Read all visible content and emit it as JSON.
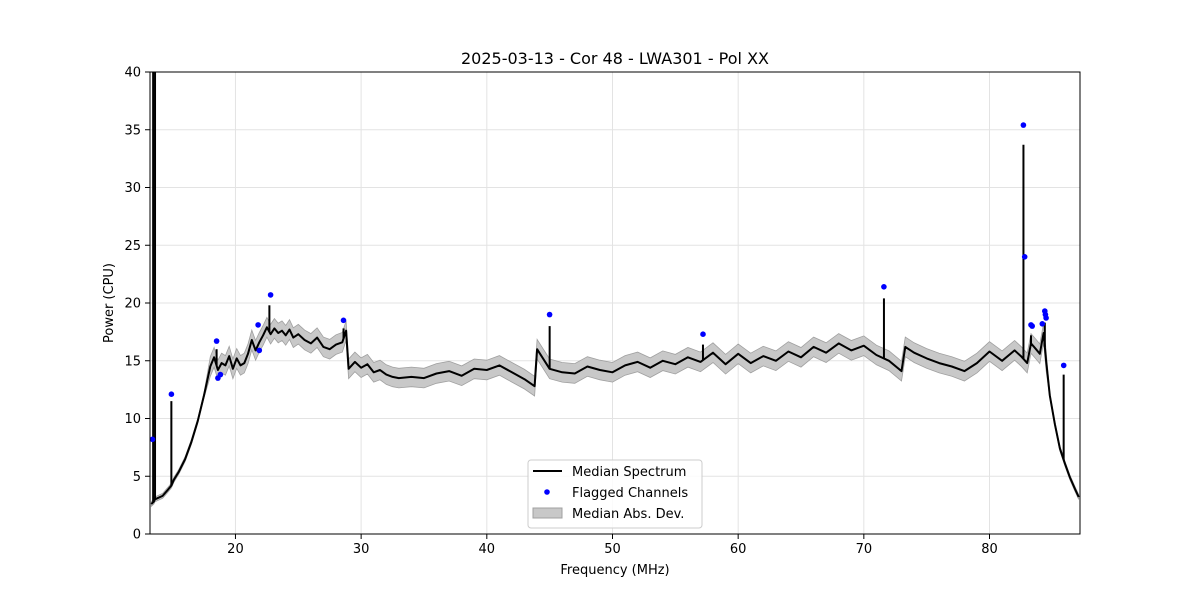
{
  "chart_data": {
    "type": "line",
    "title": "2025-03-13 - Cor 48 - LWA301 - Pol XX",
    "xlabel": "Frequency (MHz)",
    "ylabel": "Power (CPU)",
    "xlim": [
      13.2,
      87.2
    ],
    "ylim": [
      0,
      40
    ],
    "xticks": [
      20,
      30,
      40,
      50,
      60,
      70,
      80
    ],
    "yticks": [
      0,
      5,
      10,
      15,
      20,
      25,
      30,
      35,
      40
    ],
    "grid": true,
    "legend_position": "bottom-center",
    "colors": {
      "median": "#000000",
      "flagged": "#0000ff",
      "mad_fill": "#c8c8c8",
      "mad_edge": "#a0a0a0"
    },
    "legend": [
      "Median Spectrum",
      "Flagged Channels",
      "Median Abs. Dev."
    ],
    "median_spectrum": {
      "x": [
        13.3,
        13.5,
        13.6,
        13.8,
        14.2,
        14.6,
        14.9,
        15.1,
        15.5,
        16.0,
        16.5,
        17.0,
        17.5,
        18.0,
        18.3,
        18.6,
        18.9,
        19.2,
        19.5,
        19.8,
        20.1,
        20.4,
        20.7,
        21.0,
        21.3,
        21.6,
        21.9,
        22.2,
        22.5,
        22.8,
        23.1,
        23.4,
        23.7,
        24.0,
        24.3,
        24.6,
        25.0,
        25.5,
        26.0,
        26.5,
        27.0,
        27.5,
        28.0,
        28.5,
        28.8,
        29.0,
        29.5,
        30.0,
        30.5,
        31.0,
        31.5,
        32.0,
        32.5,
        33.0,
        34.0,
        35.0,
        36.0,
        37.0,
        38.0,
        39.0,
        40.0,
        41.0,
        42.0,
        43.0,
        43.8,
        44.0,
        45.0,
        46.0,
        47.0,
        48.0,
        49.0,
        50.0,
        51.0,
        52.0,
        53.0,
        54.0,
        55.0,
        56.0,
        57.0,
        58.0,
        59.0,
        60.0,
        61.0,
        62.0,
        63.0,
        64.0,
        65.0,
        66.0,
        67.0,
        68.0,
        69.0,
        70.0,
        71.0,
        72.0,
        73.0,
        73.3,
        74.0,
        75.0,
        76.0,
        77.0,
        78.0,
        79.0,
        80.0,
        81.0,
        82.0,
        82.5,
        83.0,
        83.3,
        83.7,
        84.0,
        84.3,
        84.5,
        84.8,
        85.2,
        85.6,
        86.0,
        86.4,
        86.8,
        87.1
      ],
      "y": [
        2.6,
        2.8,
        3.0,
        3.1,
        3.3,
        3.8,
        4.2,
        4.7,
        5.4,
        6.5,
        8.0,
        9.8,
        12.0,
        14.5,
        15.3,
        14.2,
        14.8,
        14.6,
        15.4,
        14.3,
        15.2,
        14.6,
        14.8,
        15.6,
        16.8,
        15.9,
        16.6,
        17.2,
        17.9,
        17.3,
        17.8,
        17.4,
        17.6,
        17.2,
        17.7,
        17.0,
        17.3,
        16.8,
        16.5,
        17.0,
        16.2,
        16.0,
        16.4,
        16.6,
        17.6,
        14.3,
        14.9,
        14.4,
        14.7,
        14.0,
        14.2,
        13.8,
        13.6,
        13.5,
        13.6,
        13.5,
        13.9,
        14.1,
        13.7,
        14.3,
        14.2,
        14.6,
        14.0,
        13.4,
        12.8,
        16.0,
        14.3,
        14.0,
        13.9,
        14.5,
        14.2,
        14.0,
        14.6,
        14.9,
        14.4,
        15.0,
        14.7,
        15.3,
        14.9,
        15.7,
        14.7,
        15.6,
        14.8,
        15.4,
        15.0,
        15.8,
        15.3,
        16.2,
        15.7,
        16.5,
        15.9,
        16.3,
        15.5,
        15.0,
        14.1,
        16.2,
        15.7,
        15.2,
        14.8,
        14.5,
        14.1,
        14.8,
        15.8,
        15.0,
        15.9,
        15.4,
        14.8,
        16.5,
        16.0,
        15.6,
        17.4,
        15.0,
        12.0,
        9.5,
        7.4,
        6.1,
        4.9,
        3.9,
        3.2
      ],
      "spikes": [
        {
          "x": 13.45,
          "y": 40.0
        },
        {
          "x": 13.6,
          "y": 40.0
        },
        {
          "x": 14.9,
          "y": 11.5
        },
        {
          "x": 18.5,
          "y": 16.0
        },
        {
          "x": 22.7,
          "y": 19.8
        },
        {
          "x": 28.6,
          "y": 17.8
        },
        {
          "x": 45.0,
          "y": 18.0
        },
        {
          "x": 57.2,
          "y": 16.4
        },
        {
          "x": 71.6,
          "y": 20.4
        },
        {
          "x": 82.7,
          "y": 33.7
        },
        {
          "x": 83.3,
          "y": 17.2
        },
        {
          "x": 84.4,
          "y": 18.3
        },
        {
          "x": 85.9,
          "y": 13.8
        }
      ]
    },
    "mad_halfwidth": 0.85,
    "flagged_channels": {
      "x": [
        13.4,
        14.9,
        18.5,
        18.6,
        18.8,
        21.8,
        21.9,
        22.8,
        28.6,
        45.0,
        57.2,
        71.6,
        82.7,
        82.8,
        83.3,
        83.4,
        84.2,
        84.4,
        84.45,
        84.5,
        85.9
      ],
      "y": [
        8.2,
        12.1,
        16.7,
        13.5,
        13.8,
        18.1,
        15.9,
        20.7,
        18.5,
        19.0,
        17.3,
        21.4,
        35.4,
        24.0,
        18.1,
        18.0,
        18.2,
        19.3,
        19.0,
        18.7,
        14.6
      ]
    }
  }
}
